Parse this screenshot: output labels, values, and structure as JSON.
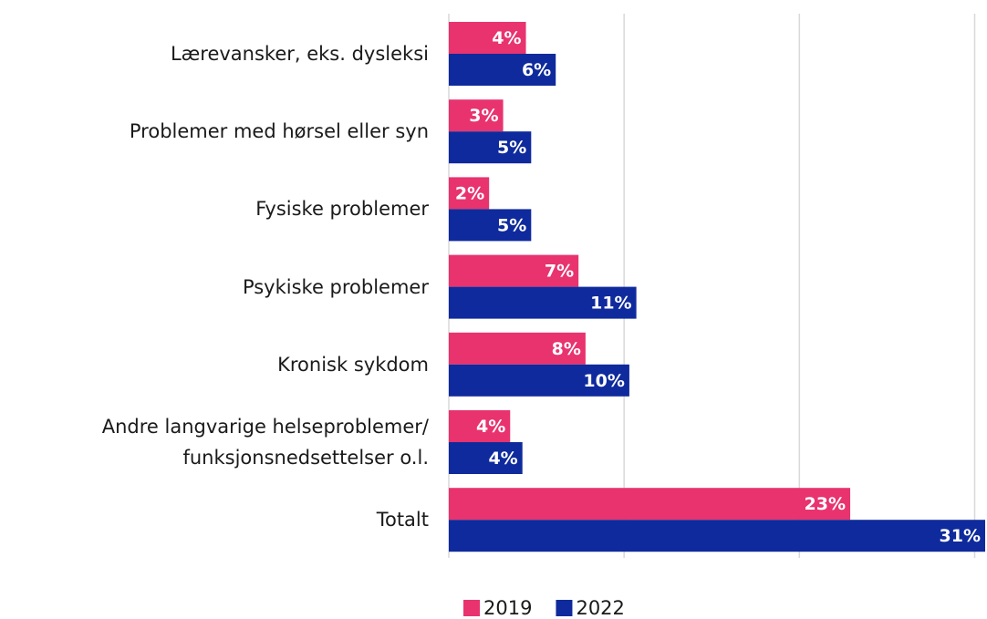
{
  "chart_data": {
    "type": "hbar",
    "categories": [
      "Lærevansker, eks. dysleksi",
      "Problemer med hørsel eller syn",
      "Fysiske problemer",
      "Psykiske problemer",
      "Kronisk sykdom",
      "Andre langvarige helseproblemer/ funksjonsnedsettelser o.l.",
      "Totalt"
    ],
    "series": [
      {
        "name": "2019",
        "color": "#e8336f",
        "values": [
          4.4,
          3.1,
          2.3,
          7.4,
          7.8,
          3.5,
          22.9
        ],
        "value_labels": [
          "4%",
          "3%",
          "2%",
          "7%",
          "8%",
          "4%",
          "23%"
        ]
      },
      {
        "name": "2022",
        "color": "#0f2a9c",
        "values": [
          6.1,
          4.7,
          4.7,
          10.7,
          10.3,
          4.2,
          30.6
        ],
        "value_labels": [
          "6%",
          "5%",
          "5%",
          "11%",
          "10%",
          "4%",
          "31%"
        ]
      }
    ],
    "xlim": [
      0,
      30.6
    ],
    "xticks": [
      0,
      10,
      20,
      30
    ],
    "grid": true,
    "legend": "bottom"
  }
}
